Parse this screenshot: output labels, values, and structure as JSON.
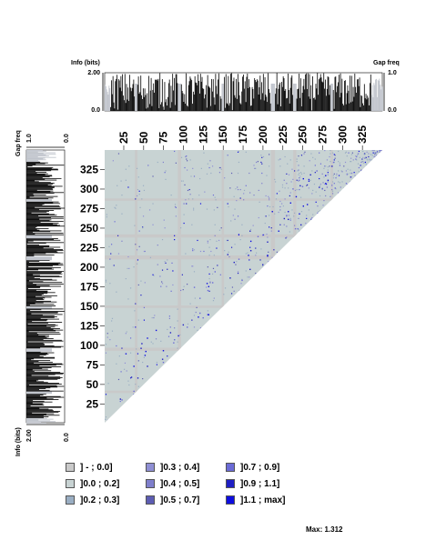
{
  "chart_data": {
    "type": "heatmap",
    "shape": "lower-triangle",
    "xlim": [
      1,
      350
    ],
    "ylim": [
      1,
      350
    ],
    "x_ticks": [
      25,
      50,
      75,
      100,
      125,
      150,
      175,
      200,
      225,
      250,
      275,
      300,
      325
    ],
    "y_ticks": [
      25,
      50,
      75,
      100,
      125,
      150,
      175,
      200,
      225,
      250,
      275,
      300,
      325
    ],
    "gap_columns": [
      [
        39,
        41
      ],
      [
        93,
        96
      ],
      [
        148,
        150
      ],
      [
        210,
        214
      ],
      [
        238,
        241
      ],
      [
        285,
        287
      ]
    ],
    "bins": [
      {
        "label": "] - ; 0.0]",
        "color": "#c9c9c9"
      },
      {
        "label": "]0.0 ; 0.2]",
        "color": "#c8d3d3"
      },
      {
        "label": "]0.2 ; 0.3]",
        "color": "#9aaec3"
      },
      {
        "label": "]0.3 ; 0.4]",
        "color": "#8f8fd4"
      },
      {
        "label": "]0.4 ; 0.5]",
        "color": "#7f7fcc"
      },
      {
        "label": "]0.5 ; 0.7]",
        "color": "#5d5db3"
      },
      {
        "label": "]0.7 ; 0.9]",
        "color": "#6b6bd6"
      },
      {
        "label": "]0.9 ; 1.1]",
        "color": "#1f1fc4"
      },
      {
        "label": "]1.1 ; max]",
        "color": "#0d0de0"
      }
    ],
    "max_value": 1.312
  },
  "top_panel": {
    "info_label": "Info (bits)",
    "info_max": "2.00",
    "info_min": "0.0",
    "gap_label": "Gap freq",
    "gap_max": "1.0",
    "gap_min": "0.0"
  },
  "left_panel": {
    "gap_label": "Gap freq",
    "gap_max": "1.0",
    "gap_min": "0.0",
    "info_label": "Info (bits)",
    "info_max": "2.00",
    "info_min": "0.0"
  },
  "footer": {
    "max_text": "Max: 1.312"
  },
  "colors": {
    "background_cell": "#c8d3d3",
    "gap_line": "#c9c9c9",
    "bar": "#000000",
    "gap_fill": "#c0c4cc"
  }
}
